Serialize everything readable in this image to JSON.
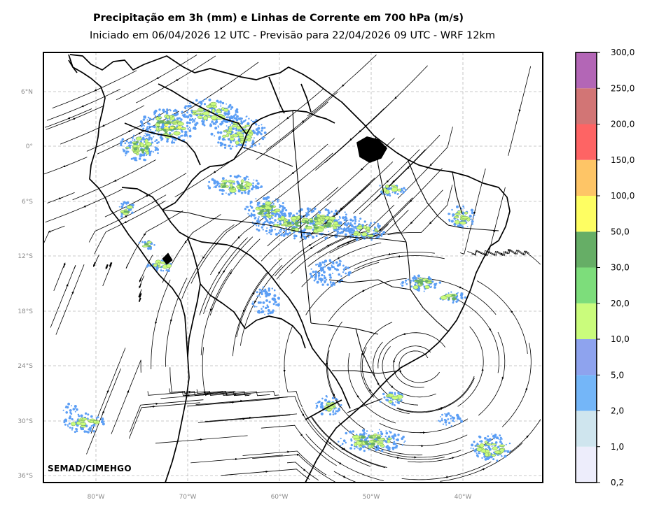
{
  "header": {
    "title": "Precipitação em 3h (mm) e Linhas de Corrente em 700 hPa (m/s)",
    "subtitle": "Iniciado em 06/04/2026 12 UTC - Previsão para 22/04/2026 09 UTC - WRF 12km"
  },
  "map": {
    "lat_labels": [
      "6°N",
      "0°",
      "6°S",
      "12°S",
      "18°S",
      "24°S",
      "30°S",
      "36°S"
    ],
    "lon_labels": [
      "80°W",
      "70°W",
      "60°W",
      "50°W",
      "40°W"
    ],
    "lon_range": [
      -86,
      -31
    ],
    "lat_range": [
      -36.5,
      10.5
    ],
    "grid": true
  },
  "colorbar": {
    "labels": [
      "0,2",
      "1,0",
      "2,0",
      "5,0",
      "10,0",
      "20,0",
      "30,0",
      "50,0",
      "100,0",
      "150,0",
      "200,0",
      "250,0",
      "300,0"
    ],
    "colors": [
      "#ededfb",
      "#cfe5ee",
      "#74b6f8",
      "#8ea3ee",
      "#cafc7c",
      "#7ddd7b",
      "#66ae66",
      "#fefe62",
      "#fec566",
      "#fe6464",
      "#d27575",
      "#b366b6"
    ]
  },
  "watermark": "SEMAD/CIMEHGO"
}
